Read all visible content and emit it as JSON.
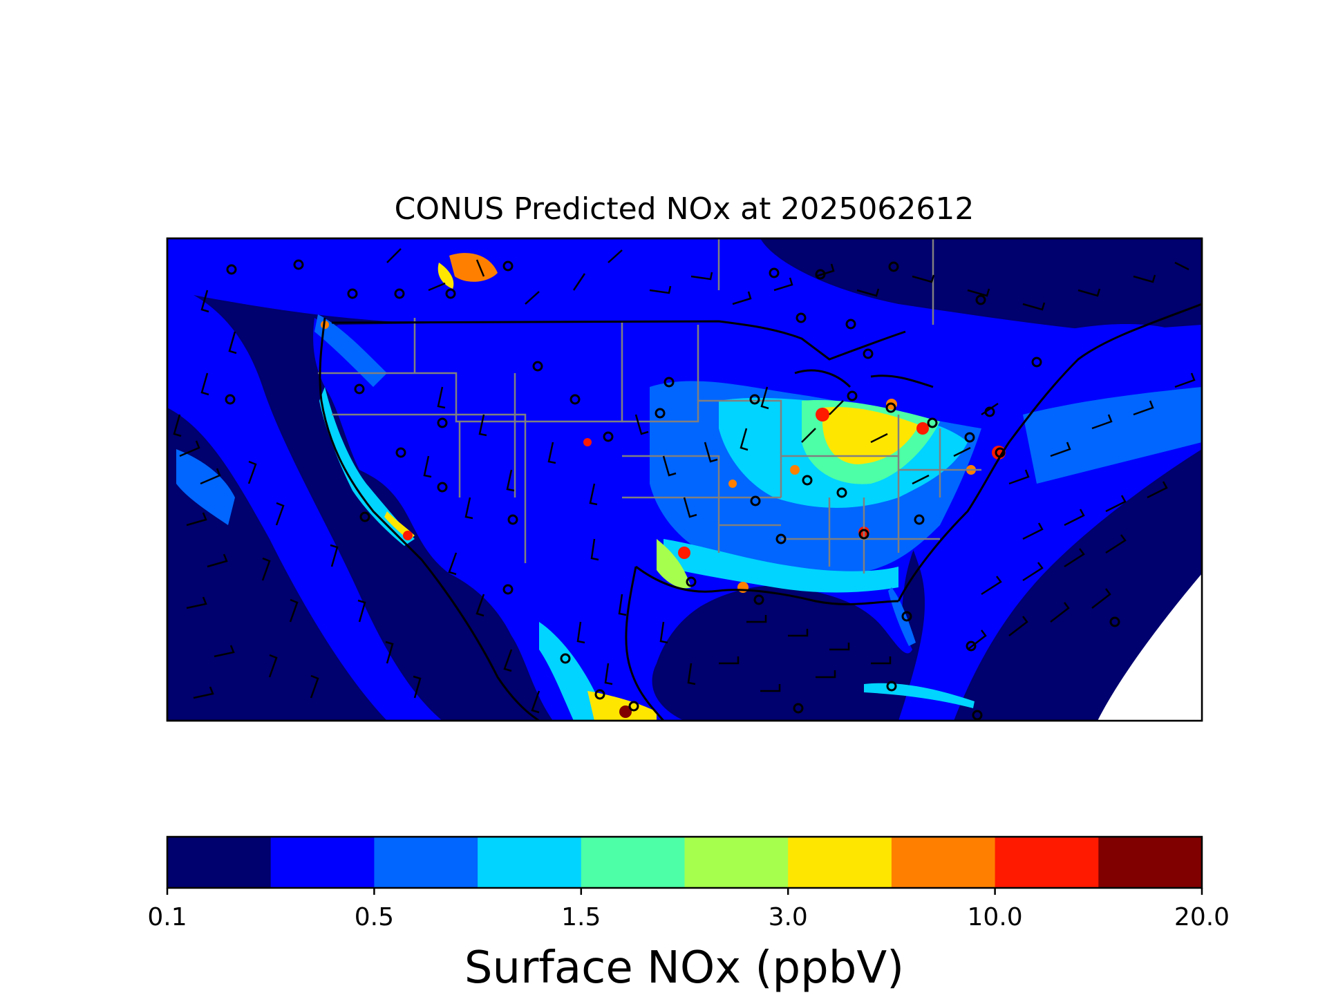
{
  "title": "CONUS Predicted NOx at 2025062612",
  "colorbar": {
    "label": "Surface NOx (ppbV)",
    "tick_labels": [
      "0.1",
      "0.5",
      "1.5",
      "3.0",
      "10.0",
      "20.0"
    ],
    "colors": [
      "#00006e",
      "#0000ff",
      "#0066ff",
      "#00d4ff",
      "#4dffa6",
      "#a6ff4d",
      "#ffe600",
      "#ff8000",
      "#ff1a00",
      "#800000"
    ]
  },
  "map": {
    "ocean_color": "#00006e",
    "coastline_color": "#000000",
    "state_border_color": "#808080",
    "no_data_color": "#ffffff",
    "overlays": [
      "wind-barbs",
      "station-markers"
    ]
  }
}
